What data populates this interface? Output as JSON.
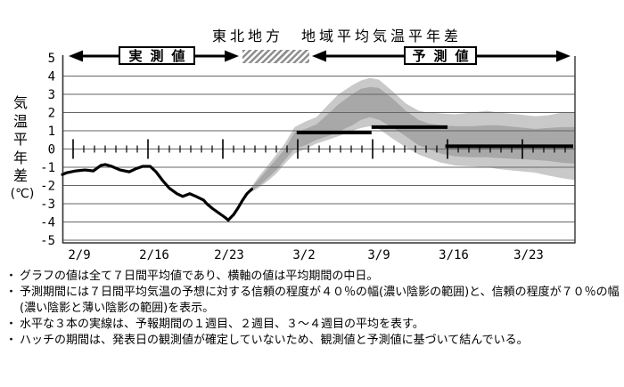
{
  "title": "東北地方　地域平均気温平年差",
  "ylabel": {
    "text": "気温平年差",
    "unit": "(℃)"
  },
  "annotations": {
    "observed_label": "実測値",
    "forecast_label": "予測値"
  },
  "bullet": "・",
  "notes": [
    "グラフの値は全て７日間平均値であり、横軸の値は平均期間の中日。",
    "予測期間には７日間平均気温の予想に対する信頼の程度が４０％の幅(濃い陰影の範囲)と、信頼の程度が７０％の幅(濃い陰影と薄い陰影の範囲)を表示。",
    "水平な３本の実線は、予報期間の１週目、２週目、３～４週目の平均を表す。",
    "ハッチの期間は、発表日の観測値が確定していないため、観測値と予測値に基づいて結んでいる。"
  ],
  "colors": {
    "band70": "#c9c9c9",
    "band40": "#a8a8a8",
    "line": "#000000",
    "grid": "#666666",
    "frame": "#333333",
    "hatch_stripe": "#8f8f8f"
  },
  "chart_data": {
    "type": "line",
    "title": "東北地方　地域平均気温平年差",
    "ylabel": "気温平年差(℃)",
    "ylim": [
      -5,
      5
    ],
    "grid": true,
    "yticks": [
      5,
      4,
      3,
      2,
      1,
      0,
      -1,
      -2,
      -3,
      -4,
      -5
    ],
    "xticks": [
      {
        "label": "2/9",
        "d": 1
      },
      {
        "label": "2/16",
        "d": 8
      },
      {
        "label": "2/23",
        "d": 15
      },
      {
        "label": "3/2",
        "d": 22
      },
      {
        "label": "3/9",
        "d": 29
      },
      {
        "label": "3/16",
        "d": 36
      },
      {
        "label": "3/23",
        "d": 43
      }
    ],
    "x_days_total": 47.9,
    "observed": [
      [
        0,
        -1.4
      ],
      [
        0.4,
        -1.3
      ],
      [
        1.25,
        -1.2
      ],
      [
        2.1,
        -1.15
      ],
      [
        2.9,
        -1.2
      ],
      [
        3.6,
        -0.9
      ],
      [
        4.0,
        -0.85
      ],
      [
        4.6,
        -0.95
      ],
      [
        5.4,
        -1.15
      ],
      [
        6.25,
        -1.25
      ],
      [
        6.8,
        -1.1
      ],
      [
        7.5,
        -0.95
      ],
      [
        8.2,
        -0.95
      ],
      [
        8.75,
        -1.25
      ],
      [
        9.4,
        -1.75
      ],
      [
        10.0,
        -2.15
      ],
      [
        10.7,
        -2.45
      ],
      [
        11.25,
        -2.6
      ],
      [
        11.9,
        -2.45
      ],
      [
        12.5,
        -2.6
      ],
      [
        13.2,
        -2.8
      ],
      [
        13.5,
        -3.0
      ],
      [
        14.0,
        -3.25
      ],
      [
        14.6,
        -3.5
      ],
      [
        15.2,
        -3.75
      ],
      [
        15.5,
        -3.9
      ],
      [
        16.0,
        -3.6
      ],
      [
        16.4,
        -3.25
      ],
      [
        16.8,
        -2.85
      ],
      [
        17.25,
        -2.45
      ],
      [
        17.7,
        -2.2
      ]
    ],
    "band40": [
      [
        17.7,
        -2.3,
        -2.1
      ],
      [
        18.3,
        -2.05,
        -1.7
      ],
      [
        19.2,
        -1.6,
        -1.1
      ],
      [
        20.0,
        -1.15,
        -0.55
      ],
      [
        20.8,
        -0.6,
        0.0
      ],
      [
        21.7,
        0.0,
        0.9
      ],
      [
        22.7,
        0.2,
        1.1
      ],
      [
        23.75,
        0.5,
        1.35
      ],
      [
        24.8,
        0.7,
        1.9
      ],
      [
        25.8,
        0.95,
        2.45
      ],
      [
        27.1,
        1.3,
        3.0
      ],
      [
        27.9,
        1.6,
        3.3
      ],
      [
        28.75,
        1.75,
        3.4
      ],
      [
        29.6,
        1.6,
        3.35
      ],
      [
        30.8,
        1.2,
        2.8
      ],
      [
        32.1,
        0.7,
        2.1
      ],
      [
        33.3,
        0.2,
        1.6
      ],
      [
        34.2,
        0.0,
        1.4
      ],
      [
        35.4,
        -0.25,
        1.3
      ],
      [
        36.7,
        -0.4,
        1.25
      ],
      [
        38.3,
        -0.45,
        1.25
      ],
      [
        39.7,
        -0.45,
        1.3
      ],
      [
        40.8,
        -0.5,
        1.3
      ],
      [
        42.5,
        -0.55,
        1.2
      ],
      [
        44.2,
        -0.6,
        1.1
      ],
      [
        45.4,
        -0.65,
        1.15
      ],
      [
        46.7,
        -0.75,
        1.2
      ],
      [
        47.9,
        -0.8,
        1.2
      ]
    ],
    "band70": [
      [
        17.7,
        -2.35,
        -2.05
      ],
      [
        18.3,
        -2.15,
        -1.55
      ],
      [
        19.2,
        -1.75,
        -0.9
      ],
      [
        20.0,
        -1.35,
        -0.3
      ],
      [
        20.8,
        -0.8,
        0.3
      ],
      [
        21.7,
        -0.25,
        1.2
      ],
      [
        22.7,
        0.0,
        1.5
      ],
      [
        23.75,
        0.3,
        1.75
      ],
      [
        24.8,
        0.5,
        2.4
      ],
      [
        25.8,
        0.7,
        3.0
      ],
      [
        27.1,
        1.0,
        3.5
      ],
      [
        27.9,
        1.15,
        3.75
      ],
      [
        28.75,
        1.25,
        3.9
      ],
      [
        29.6,
        1.1,
        3.8
      ],
      [
        30.8,
        0.6,
        3.2
      ],
      [
        32.1,
        0.1,
        2.5
      ],
      [
        33.3,
        -0.3,
        2.1
      ],
      [
        34.2,
        -0.5,
        2.0
      ],
      [
        35.4,
        -0.75,
        1.95
      ],
      [
        36.7,
        -0.9,
        1.9
      ],
      [
        38.3,
        -0.95,
        2.0
      ],
      [
        39.7,
        -1.0,
        2.1
      ],
      [
        40.8,
        -1.1,
        2.0
      ],
      [
        42.5,
        -1.2,
        1.9
      ],
      [
        44.2,
        -1.3,
        1.8
      ],
      [
        45.4,
        -1.45,
        1.85
      ],
      [
        46.7,
        -1.6,
        2.0
      ],
      [
        47.9,
        -1.7,
        2.0
      ]
    ],
    "week_means": [
      {
        "d0": 21.9,
        "d1": 28.9,
        "v": 0.9
      },
      {
        "d0": 28.9,
        "d1": 36.0,
        "v": 1.2
      },
      {
        "d0": 35.8,
        "d1": 47.75,
        "v": 0.15
      }
    ],
    "hatch_period": {
      "d0": 16.8,
      "d1": 23.1
    }
  }
}
